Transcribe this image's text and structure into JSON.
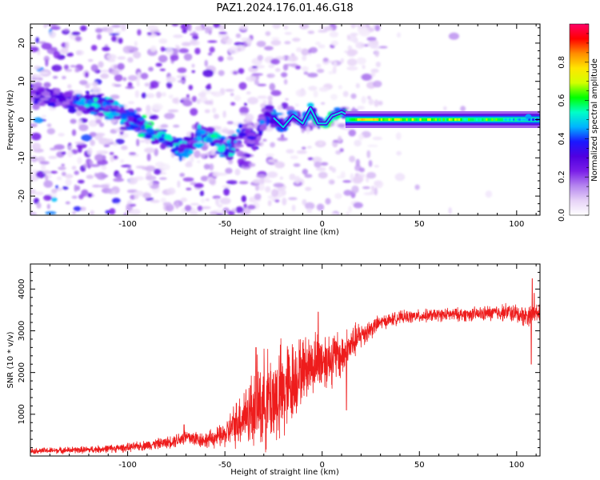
{
  "figure": {
    "title": "PAZ1.2024.176.01.46.G18"
  },
  "colormap": {
    "stops": [
      "#ffffff",
      "#e6d2f7",
      "#b585ef",
      "#7a1ee8",
      "#5000e0",
      "#1a18ff",
      "#00b4ff",
      "#00ffc8",
      "#00ff00",
      "#d2ff00",
      "#ffe600",
      "#ff8c00",
      "#ff0000",
      "#ff0066"
    ]
  },
  "chart_data": [
    {
      "type": "heatmap",
      "xlabel": "Height of straight line (km)",
      "ylabel": "Frequency (Hz)",
      "xlim": [
        -150,
        112
      ],
      "ylim": [
        -25,
        25
      ],
      "xticks": [
        {
          "value": -100,
          "label": "-100"
        },
        {
          "value": -50,
          "label": "-50"
        },
        {
          "value": 0,
          "label": "0"
        },
        {
          "value": 50,
          "label": "50"
        },
        {
          "value": 100,
          "label": "100"
        }
      ],
      "yticks": [
        {
          "value": 20,
          "label": "20"
        },
        {
          "value": 10,
          "label": "10"
        },
        {
          "value": 0,
          "label": "0"
        },
        {
          "value": -10,
          "label": "-10"
        },
        {
          "value": -20,
          "label": "-20"
        }
      ],
      "colorbar": {
        "label": "Normalized spectral amplitude",
        "range": [
          0,
          1
        ],
        "ticks": [
          {
            "value": 0.0,
            "label": "0.0"
          },
          {
            "value": 0.2,
            "label": "0.2"
          },
          {
            "value": 0.4,
            "label": "0.4"
          },
          {
            "value": 0.6,
            "label": "0.6"
          },
          {
            "value": 0.8,
            "label": "0.8"
          }
        ]
      },
      "ridge": [
        {
          "x": -150,
          "f": 7,
          "a": 0.3
        },
        {
          "x": -130,
          "f": 5,
          "a": 0.35
        },
        {
          "x": -116,
          "f": 4,
          "a": 0.55
        },
        {
          "x": -105,
          "f": 2,
          "a": 0.45
        },
        {
          "x": -95,
          "f": -1,
          "a": 0.5
        },
        {
          "x": -88,
          "f": -3,
          "a": 0.55
        },
        {
          "x": -80,
          "f": -5,
          "a": 0.5
        },
        {
          "x": -72,
          "f": -8,
          "a": 0.5
        },
        {
          "x": -62,
          "f": -4,
          "a": 0.45
        },
        {
          "x": -55,
          "f": -5,
          "a": 0.55
        },
        {
          "x": -48,
          "f": -8,
          "a": 0.5
        },
        {
          "x": -40,
          "f": -3,
          "a": 0.35
        },
        {
          "x": -34,
          "f": -6,
          "a": 0.35
        },
        {
          "x": -28,
          "f": 2,
          "a": 0.45
        },
        {
          "x": -20,
          "f": -2,
          "a": 0.45
        },
        {
          "x": -15,
          "f": 1,
          "a": 0.45
        },
        {
          "x": -10,
          "f": -1,
          "a": 0.5
        },
        {
          "x": -6,
          "f": 3,
          "a": 0.55
        },
        {
          "x": -2,
          "f": -1,
          "a": 0.6
        },
        {
          "x": 2,
          "f": -1,
          "a": 0.65
        },
        {
          "x": 5,
          "f": 1,
          "a": 0.5
        },
        {
          "x": 10,
          "f": 2,
          "a": 0.55
        },
        {
          "x": 14,
          "f": 1,
          "a": 0.6
        },
        {
          "x": 20,
          "f": 0,
          "a": 0.75
        },
        {
          "x": 35,
          "f": 0,
          "a": 0.7
        },
        {
          "x": 60,
          "f": 0,
          "a": 0.65
        },
        {
          "x": 90,
          "f": 0,
          "a": 0.6
        },
        {
          "x": 105,
          "f": 1,
          "a": 0.45
        },
        {
          "x": 112,
          "f": 0,
          "a": 0.4
        }
      ]
    },
    {
      "type": "line",
      "xlabel": "Height of straight line (km)",
      "ylabel": "SNR (10 * v/v)",
      "xlim": [
        -150,
        112
      ],
      "ylim": [
        0,
        4600
      ],
      "color": "#ee1c1c",
      "xticks": [
        {
          "value": -100,
          "label": "-100"
        },
        {
          "value": -50,
          "label": "-50"
        },
        {
          "value": 0,
          "label": "0"
        },
        {
          "value": 50,
          "label": "50"
        },
        {
          "value": 100,
          "label": "100"
        }
      ],
      "yticks": [
        {
          "value": 1000,
          "label": "1000"
        },
        {
          "value": 2000,
          "label": "2000"
        },
        {
          "value": 3000,
          "label": "3000"
        },
        {
          "value": 4000,
          "label": "4000"
        }
      ],
      "envelope": [
        {
          "x": -150,
          "base": 120,
          "noise": 80
        },
        {
          "x": -120,
          "base": 150,
          "noise": 100
        },
        {
          "x": -100,
          "base": 200,
          "noise": 120
        },
        {
          "x": -80,
          "base": 320,
          "noise": 160
        },
        {
          "x": -70,
          "base": 450,
          "noise": 250
        },
        {
          "x": -60,
          "base": 380,
          "noise": 220
        },
        {
          "x": -50,
          "base": 500,
          "noise": 350
        },
        {
          "x": -40,
          "base": 1000,
          "noise": 900
        },
        {
          "x": -30,
          "base": 1300,
          "noise": 1400
        },
        {
          "x": -20,
          "base": 1500,
          "noise": 1500
        },
        {
          "x": -10,
          "base": 2100,
          "noise": 900
        },
        {
          "x": 0,
          "base": 2300,
          "noise": 900
        },
        {
          "x": 10,
          "base": 2400,
          "noise": 700
        },
        {
          "x": 20,
          "base": 2900,
          "noise": 400
        },
        {
          "x": 30,
          "base": 3200,
          "noise": 200
        },
        {
          "x": 40,
          "base": 3320,
          "noise": 180
        },
        {
          "x": 60,
          "base": 3380,
          "noise": 180
        },
        {
          "x": 80,
          "base": 3400,
          "noise": 200
        },
        {
          "x": 95,
          "base": 3450,
          "noise": 250
        },
        {
          "x": 105,
          "base": 3350,
          "noise": 300
        },
        {
          "x": 112,
          "base": 3450,
          "noise": 200
        }
      ],
      "features": [
        {
          "x": 107.5,
          "y": 2200
        },
        {
          "x": 108,
          "y": 4250
        },
        {
          "x": 109,
          "y": 3900
        },
        {
          "x": 12.5,
          "y": 1100
        },
        {
          "x": -2,
          "y": 3450
        },
        {
          "x": -34,
          "y": 2600
        },
        {
          "x": -71,
          "y": 750
        }
      ]
    }
  ]
}
